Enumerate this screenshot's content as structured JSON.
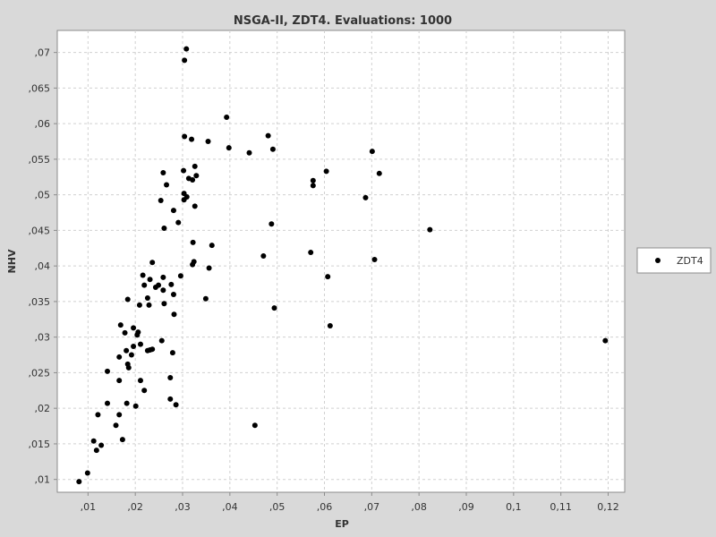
{
  "chart_data": {
    "type": "scatter",
    "title": "NSGA-II, ZDT4. Evaluations: 1000",
    "xlabel": "EP",
    "ylabel": "NHV",
    "xlim": [
      0.0035,
      0.1235
    ],
    "ylim": [
      0.0082,
      0.0731
    ],
    "x_ticks": [
      0.01,
      0.02,
      0.03,
      0.04,
      0.05,
      0.06,
      0.07,
      0.08,
      0.09,
      0.1,
      0.11,
      0.12
    ],
    "x_tick_labels": [
      ",01",
      ",02",
      ",03",
      ",04",
      ",05",
      ",06",
      ",07",
      ",08",
      ",09",
      "0,1",
      "0,11",
      "0,12"
    ],
    "y_ticks": [
      0.01,
      0.015,
      0.02,
      0.025,
      0.03,
      0.035,
      0.04,
      0.045,
      0.05,
      0.055,
      0.06,
      0.065,
      0.07
    ],
    "y_tick_labels": [
      ",01",
      ",015",
      ",02",
      ",025",
      ",03",
      ",035",
      ",04",
      ",045",
      ",05",
      ",055",
      ",06",
      ",065",
      ",07"
    ],
    "grid": true,
    "legend_position": "right",
    "series": [
      {
        "name": "ZDT4",
        "color": "#000000",
        "points": [
          [
            0.0308,
            0.0705
          ],
          [
            0.0304,
            0.0689
          ],
          [
            0.0393,
            0.0609
          ],
          [
            0.0304,
            0.0582
          ],
          [
            0.0319,
            0.0578
          ],
          [
            0.0354,
            0.0575
          ],
          [
            0.0481,
            0.0583
          ],
          [
            0.0398,
            0.0566
          ],
          [
            0.0491,
            0.0564
          ],
          [
            0.0441,
            0.0559
          ],
          [
            0.0701,
            0.0561
          ],
          [
            0.0326,
            0.054
          ],
          [
            0.0302,
            0.0534
          ],
          [
            0.0259,
            0.0531
          ],
          [
            0.0329,
            0.0527
          ],
          [
            0.0313,
            0.0523
          ],
          [
            0.0321,
            0.0521
          ],
          [
            0.0604,
            0.0533
          ],
          [
            0.0716,
            0.053
          ],
          [
            0.0576,
            0.052
          ],
          [
            0.0576,
            0.0513
          ],
          [
            0.0266,
            0.0514
          ],
          [
            0.0303,
            0.0502
          ],
          [
            0.0309,
            0.0497
          ],
          [
            0.0303,
            0.0493
          ],
          [
            0.0254,
            0.0492
          ],
          [
            0.0326,
            0.0484
          ],
          [
            0.0281,
            0.0478
          ],
          [
            0.0687,
            0.0496
          ],
          [
            0.0291,
            0.0461
          ],
          [
            0.0488,
            0.0459
          ],
          [
            0.0261,
            0.0453
          ],
          [
            0.0823,
            0.0451
          ],
          [
            0.0322,
            0.0433
          ],
          [
            0.0362,
            0.0429
          ],
          [
            0.0571,
            0.0419
          ],
          [
            0.0471,
            0.0414
          ],
          [
            0.0706,
            0.0409
          ],
          [
            0.0236,
            0.0405
          ],
          [
            0.0324,
            0.0406
          ],
          [
            0.0321,
            0.0402
          ],
          [
            0.0356,
            0.0397
          ],
          [
            0.0216,
            0.0387
          ],
          [
            0.0296,
            0.0386
          ],
          [
            0.0259,
            0.0384
          ],
          [
            0.0231,
            0.0381
          ],
          [
            0.0607,
            0.0385
          ],
          [
            0.0276,
            0.0374
          ],
          [
            0.0219,
            0.0373
          ],
          [
            0.0249,
            0.0373
          ],
          [
            0.0243,
            0.037
          ],
          [
            0.0259,
            0.0366
          ],
          [
            0.0281,
            0.036
          ],
          [
            0.0226,
            0.0355
          ],
          [
            0.0184,
            0.0353
          ],
          [
            0.0349,
            0.0354
          ],
          [
            0.0209,
            0.0345
          ],
          [
            0.0229,
            0.0345
          ],
          [
            0.0261,
            0.0347
          ],
          [
            0.0494,
            0.0341
          ],
          [
            0.0282,
            0.0332
          ],
          [
            0.0169,
            0.0317
          ],
          [
            0.0196,
            0.0313
          ],
          [
            0.0612,
            0.0316
          ],
          [
            0.0206,
            0.0307
          ],
          [
            0.0178,
            0.0306
          ],
          [
            0.0204,
            0.0303
          ],
          [
            0.0256,
            0.0295
          ],
          [
            0.1194,
            0.0295
          ],
          [
            0.0211,
            0.029
          ],
          [
            0.0196,
            0.0287
          ],
          [
            0.0236,
            0.0283
          ],
          [
            0.0181,
            0.0281
          ],
          [
            0.0226,
            0.0281
          ],
          [
            0.0231,
            0.0282
          ],
          [
            0.0279,
            0.0278
          ],
          [
            0.0166,
            0.0272
          ],
          [
            0.0192,
            0.0275
          ],
          [
            0.0184,
            0.0262
          ],
          [
            0.0186,
            0.0257
          ],
          [
            0.0141,
            0.0252
          ],
          [
            0.0274,
            0.0243
          ],
          [
            0.0166,
            0.0239
          ],
          [
            0.0211,
            0.0239
          ],
          [
            0.0219,
            0.0225
          ],
          [
            0.0274,
            0.0213
          ],
          [
            0.0141,
            0.0207
          ],
          [
            0.0182,
            0.0207
          ],
          [
            0.0286,
            0.0205
          ],
          [
            0.0201,
            0.0203
          ],
          [
            0.0121,
            0.0191
          ],
          [
            0.0166,
            0.0191
          ],
          [
            0.0453,
            0.0176
          ],
          [
            0.0159,
            0.0176
          ],
          [
            0.0112,
            0.0154
          ],
          [
            0.0173,
            0.0156
          ],
          [
            0.0128,
            0.0148
          ],
          [
            0.0118,
            0.0141
          ],
          [
            0.0099,
            0.0109
          ],
          [
            0.0081,
            0.0097
          ]
        ]
      }
    ]
  }
}
